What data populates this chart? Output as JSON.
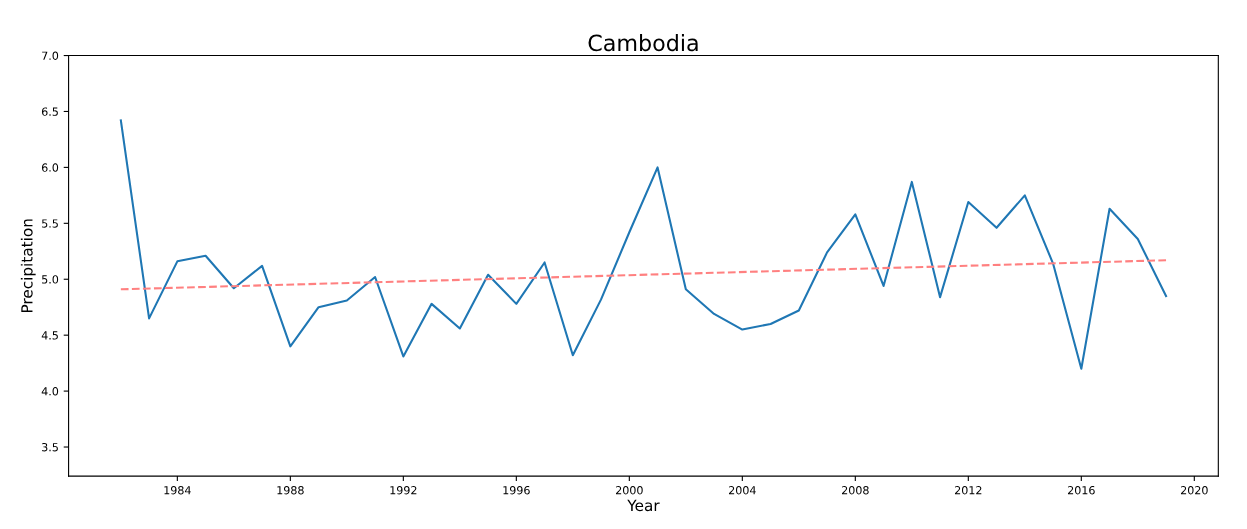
{
  "chart_data": {
    "type": "line",
    "title": "Cambodia",
    "xlabel": "Year",
    "ylabel": "Precipitation",
    "x": [
      1982,
      1983,
      1984,
      1985,
      1986,
      1987,
      1988,
      1989,
      1990,
      1991,
      1992,
      1993,
      1994,
      1995,
      1996,
      1997,
      1998,
      1999,
      2000,
      2001,
      2002,
      2003,
      2004,
      2005,
      2006,
      2007,
      2008,
      2009,
      2010,
      2011,
      2012,
      2013,
      2014,
      2015,
      2016,
      2017,
      2018,
      2019
    ],
    "series": [
      {
        "color": "#1f77b4",
        "line_style": "solid",
        "values": [
          6.42,
          4.65,
          5.16,
          5.21,
          4.92,
          5.12,
          4.4,
          4.75,
          4.81,
          5.02,
          4.31,
          4.78,
          4.56,
          5.04,
          4.78,
          5.15,
          4.32,
          4.82,
          5.42,
          6.0,
          4.91,
          4.69,
          4.55,
          4.6,
          4.72,
          5.24,
          5.58,
          4.94,
          5.87,
          4.84,
          5.69,
          5.46,
          5.75,
          5.14,
          4.2,
          5.63,
          5.36,
          4.85
        ]
      },
      {
        "type": "line",
        "color": "#ff8080",
        "line_style": "dashed",
        "x": [
          1982,
          2019
        ],
        "values": [
          4.91,
          5.17
        ]
      }
    ],
    "xlim": [
      1980.15,
      2020.85
    ],
    "xticks": [
      1984,
      1988,
      1992,
      1996,
      2000,
      2004,
      2008,
      2012,
      2016,
      2020
    ],
    "ylim": [
      3.24,
      7.0
    ],
    "yticks": [
      3.5,
      {
        "value": 4,
        "label": "4.0"
      },
      4.5,
      {
        "value": 5,
        "label": "5.0"
      },
      5.5,
      {
        "value": 6,
        "label": "6.0"
      },
      6.5,
      {
        "value": 7,
        "label": "7.0"
      }
    ],
    "grid": false,
    "legend": false,
    "marker": "none"
  }
}
